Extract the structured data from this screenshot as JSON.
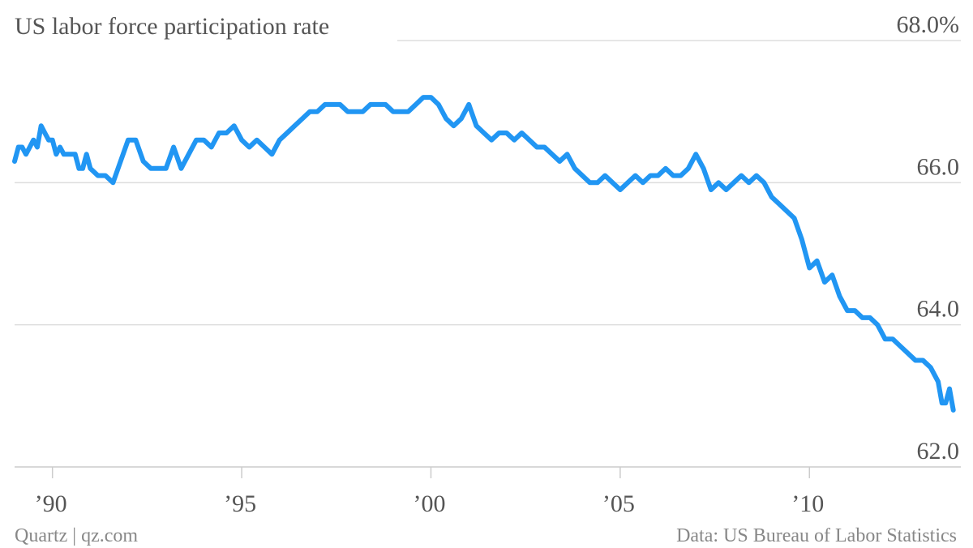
{
  "footer": {
    "source_left": "Quartz | qz.com",
    "source_right": "Data: US Bureau of Labor Statistics"
  },
  "chart_data": {
    "type": "line",
    "title": "US labor force participation rate",
    "xlabel": "",
    "ylabel": "",
    "xlim": [
      1989.0,
      2014.0
    ],
    "ylim": [
      62.0,
      68.0
    ],
    "grid": true,
    "y_axis_position": "right",
    "y_ticks": [
      62.0,
      64.0,
      66.0,
      68.0
    ],
    "y_tick_labels": [
      "62.0",
      "64.0",
      "66.0",
      "68.0%"
    ],
    "x_ticks": [
      1990,
      1995,
      2000,
      2005,
      2010
    ],
    "x_tick_labels": [
      "’90",
      "’95",
      "’00",
      "’05",
      "’10"
    ],
    "colors": {
      "series": "#2196f3"
    },
    "series": [
      {
        "x": [
          1989.0,
          1989.1,
          1989.2,
          1989.3,
          1989.4,
          1989.5,
          1989.6,
          1989.7,
          1989.8,
          1989.9,
          1990.0,
          1990.1,
          1990.2,
          1990.3,
          1990.4,
          1990.5,
          1990.6,
          1990.7,
          1990.8,
          1990.9,
          1991.0,
          1991.2,
          1991.4,
          1991.6,
          1991.8,
          1992.0,
          1992.2,
          1992.4,
          1992.6,
          1992.8,
          1993.0,
          1993.2,
          1993.4,
          1993.6,
          1993.8,
          1994.0,
          1994.2,
          1994.4,
          1994.6,
          1994.8,
          1995.0,
          1995.2,
          1995.4,
          1995.6,
          1995.8,
          1996.0,
          1996.2,
          1996.4,
          1996.6,
          1996.8,
          1997.0,
          1997.2,
          1997.4,
          1997.6,
          1997.8,
          1998.0,
          1998.2,
          1998.4,
          1998.6,
          1998.8,
          1999.0,
          1999.2,
          1999.4,
          1999.6,
          1999.8,
          2000.0,
          2000.2,
          2000.4,
          2000.6,
          2000.8,
          2001.0,
          2001.2,
          2001.4,
          2001.6,
          2001.8,
          2002.0,
          2002.2,
          2002.4,
          2002.6,
          2002.8,
          2003.0,
          2003.2,
          2003.4,
          2003.6,
          2003.8,
          2004.0,
          2004.2,
          2004.4,
          2004.6,
          2004.8,
          2005.0,
          2005.2,
          2005.4,
          2005.6,
          2005.8,
          2006.0,
          2006.2,
          2006.4,
          2006.6,
          2006.8,
          2007.0,
          2007.2,
          2007.4,
          2007.6,
          2007.8,
          2008.0,
          2008.2,
          2008.4,
          2008.6,
          2008.8,
          2009.0,
          2009.2,
          2009.4,
          2009.6,
          2009.8,
          2010.0,
          2010.2,
          2010.4,
          2010.6,
          2010.8,
          2011.0,
          2011.2,
          2011.4,
          2011.6,
          2011.8,
          2012.0,
          2012.2,
          2012.4,
          2012.6,
          2012.8,
          2013.0,
          2013.2,
          2013.4,
          2013.5,
          2013.6,
          2013.7,
          2013.8
        ],
        "y": [
          66.3,
          66.5,
          66.5,
          66.4,
          66.5,
          66.6,
          66.5,
          66.8,
          66.7,
          66.6,
          66.6,
          66.4,
          66.5,
          66.4,
          66.4,
          66.4,
          66.4,
          66.2,
          66.2,
          66.4,
          66.2,
          66.1,
          66.1,
          66.0,
          66.3,
          66.6,
          66.6,
          66.3,
          66.2,
          66.2,
          66.2,
          66.5,
          66.2,
          66.4,
          66.6,
          66.6,
          66.5,
          66.7,
          66.7,
          66.8,
          66.6,
          66.5,
          66.6,
          66.5,
          66.4,
          66.6,
          66.7,
          66.8,
          66.9,
          67.0,
          67.0,
          67.1,
          67.1,
          67.1,
          67.0,
          67.0,
          67.0,
          67.1,
          67.1,
          67.1,
          67.0,
          67.0,
          67.0,
          67.1,
          67.2,
          67.2,
          67.1,
          66.9,
          66.8,
          66.9,
          67.1,
          66.8,
          66.7,
          66.6,
          66.7,
          66.7,
          66.6,
          66.7,
          66.6,
          66.5,
          66.5,
          66.4,
          66.3,
          66.4,
          66.2,
          66.1,
          66.0,
          66.0,
          66.1,
          66.0,
          65.9,
          66.0,
          66.1,
          66.0,
          66.1,
          66.1,
          66.2,
          66.1,
          66.1,
          66.2,
          66.4,
          66.2,
          65.9,
          66.0,
          65.9,
          66.0,
          66.1,
          66.0,
          66.1,
          66.0,
          65.8,
          65.7,
          65.6,
          65.5,
          65.2,
          64.8,
          64.9,
          64.6,
          64.7,
          64.4,
          64.2,
          64.2,
          64.1,
          64.1,
          64.0,
          63.8,
          63.8,
          63.7,
          63.6,
          63.5,
          63.5,
          63.4,
          63.2,
          62.9,
          62.9,
          63.1,
          62.8
        ]
      }
    ]
  }
}
